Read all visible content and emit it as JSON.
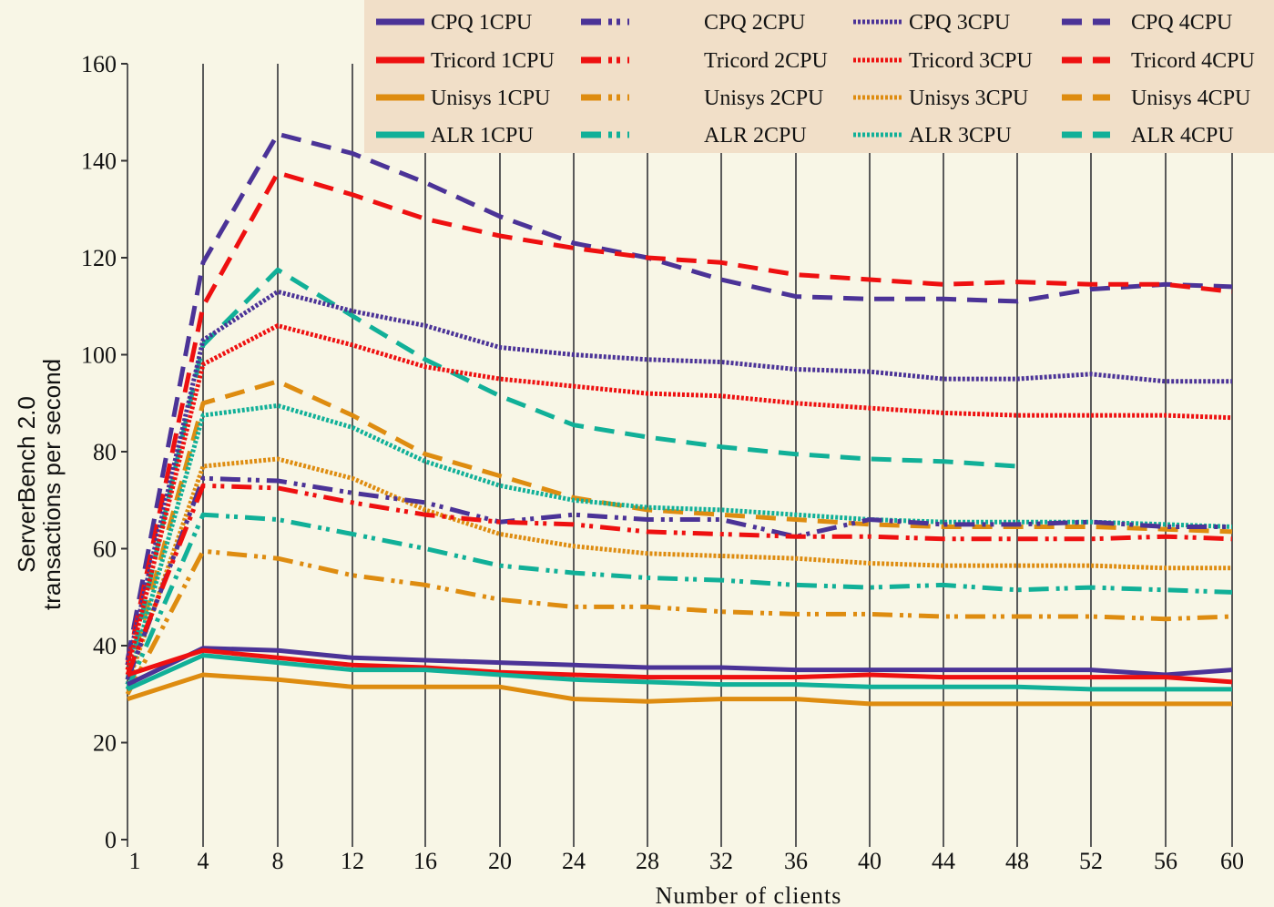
{
  "chart_data": {
    "type": "line",
    "xlabel": "Number of clients",
    "ylabel_lines": [
      "ServerBench 2.0",
      "transactions per second"
    ],
    "ylim": [
      0,
      160
    ],
    "yticks": [
      0,
      20,
      40,
      60,
      80,
      100,
      120,
      140,
      160
    ],
    "x": [
      1,
      4,
      8,
      12,
      16,
      20,
      24,
      28,
      32,
      36,
      40,
      44,
      48,
      52,
      56,
      60
    ],
    "grid": "vertical lines at each x tick",
    "legend_position": "top-right, 4 columns",
    "colors": {
      "CPQ": "#4b3397",
      "Tricord": "#ee1010",
      "Unisys": "#de8c10",
      "ALR": "#11b098",
      "background": "#f8f6e6",
      "legend_background": "#f1dfc8"
    },
    "series": [
      {
        "name": "CPQ 1CPU",
        "vendor": "CPQ",
        "cpus": 1,
        "values": [
          32,
          39.5,
          39,
          37.5,
          37,
          36.5,
          36,
          35.5,
          35.5,
          35,
          35,
          35,
          35,
          35,
          34,
          35
        ]
      },
      {
        "name": "CPQ 2CPU",
        "vendor": "CPQ",
        "cpus": 2,
        "values": [
          33,
          74.5,
          74,
          71.5,
          69.5,
          65.5,
          67,
          66,
          66,
          62.5,
          66,
          65,
          65,
          65.5,
          64.5,
          64.5
        ]
      },
      {
        "name": "CPQ 3CPU",
        "vendor": "CPQ",
        "cpus": 3,
        "values": [
          36,
          103,
          113,
          109,
          106,
          101.5,
          100,
          99,
          98.5,
          97,
          96.5,
          95,
          95,
          96,
          94.5,
          94.5
        ]
      },
      {
        "name": "CPQ 4CPU",
        "vendor": "CPQ",
        "cpus": 4,
        "values": [
          37,
          119,
          145.5,
          141.5,
          135.5,
          128.5,
          123,
          120,
          115.5,
          112,
          111.5,
          111.5,
          111,
          113.5,
          114.5,
          114
        ]
      },
      {
        "name": "Tricord  1CPU",
        "vendor": "Tricord",
        "cpus": 1,
        "values": [
          34,
          39,
          37.5,
          36,
          35.5,
          34.5,
          34,
          33.5,
          33.5,
          33.5,
          34,
          33.5,
          33.5,
          33.5,
          33.5,
          32.5
        ]
      },
      {
        "name": "Tricord  2CPU",
        "vendor": "Tricord",
        "cpus": 2,
        "values": [
          34,
          73,
          72.5,
          69.5,
          67,
          65.5,
          65,
          63.5,
          63,
          62.5,
          62.5,
          62,
          62,
          62,
          62.5,
          62
        ]
      },
      {
        "name": "Tricord  3CPU",
        "vendor": "Tricord",
        "cpus": 3,
        "values": [
          35,
          98,
          106,
          102,
          97.5,
          95,
          93.5,
          92,
          91.5,
          90,
          89,
          88,
          87.5,
          87.5,
          87.5,
          87
        ]
      },
      {
        "name": "Tricord  4CPU",
        "vendor": "Tricord",
        "cpus": 4,
        "values": [
          36,
          110,
          137.5,
          133,
          128,
          124.5,
          122,
          120,
          119,
          116.5,
          115.5,
          114.5,
          115,
          114.5,
          114.5,
          113
        ]
      },
      {
        "name": "Unisys 1CPU",
        "vendor": "Unisys",
        "cpus": 1,
        "values": [
          29,
          34,
          33,
          31.5,
          31.5,
          31.5,
          29,
          28.5,
          29,
          29,
          28,
          28,
          28,
          28,
          28,
          28
        ]
      },
      {
        "name": "Unisys 2CPU",
        "vendor": "Unisys",
        "cpus": 2,
        "values": [
          30,
          59.5,
          58,
          54.5,
          52.5,
          49.5,
          48,
          48,
          47,
          46.5,
          46.5,
          46,
          46,
          46,
          45.5,
          46
        ]
      },
      {
        "name": "Unisys 3CPU",
        "vendor": "Unisys",
        "cpus": 3,
        "values": [
          32,
          77,
          78.5,
          74.5,
          68,
          63,
          60.5,
          59,
          58.5,
          58,
          57,
          56.5,
          56.5,
          56.5,
          56,
          56
        ]
      },
      {
        "name": "Unisys 4CPU",
        "vendor": "Unisys",
        "cpus": 4,
        "values": [
          33,
          90,
          94.5,
          87.5,
          79.5,
          75,
          70.5,
          68,
          67,
          66,
          65,
          64.5,
          64.5,
          64.5,
          64,
          63.5
        ]
      },
      {
        "name": "ALR 1CPU",
        "vendor": "ALR",
        "cpus": 1,
        "values": [
          31,
          38,
          36.5,
          35,
          35,
          34,
          33,
          32.5,
          32,
          32,
          31.5,
          31.5,
          31.5,
          31,
          31,
          31
        ]
      },
      {
        "name": "ALR 2CPU",
        "vendor": "ALR",
        "cpus": 2,
        "values": [
          31,
          67,
          66,
          63,
          60,
          56.5,
          55,
          54,
          53.5,
          52.5,
          52,
          52.5,
          51.5,
          52,
          51.5,
          51
        ]
      },
      {
        "name": "ALR 3CPU",
        "vendor": "ALR",
        "cpus": 3,
        "values": [
          32,
          87.5,
          89.5,
          85,
          78,
          73,
          70,
          68.5,
          68,
          67,
          66,
          65.5,
          65.5,
          65.5,
          65,
          64.5
        ]
      },
      {
        "name": "ALR 4CPU",
        "vendor": "ALR",
        "cpus": 4,
        "values": [
          33,
          102,
          117.5,
          108,
          99,
          91.5,
          85.5,
          83,
          81,
          79.5,
          78.5,
          78,
          77,
          null,
          null,
          null
        ]
      }
    ]
  }
}
